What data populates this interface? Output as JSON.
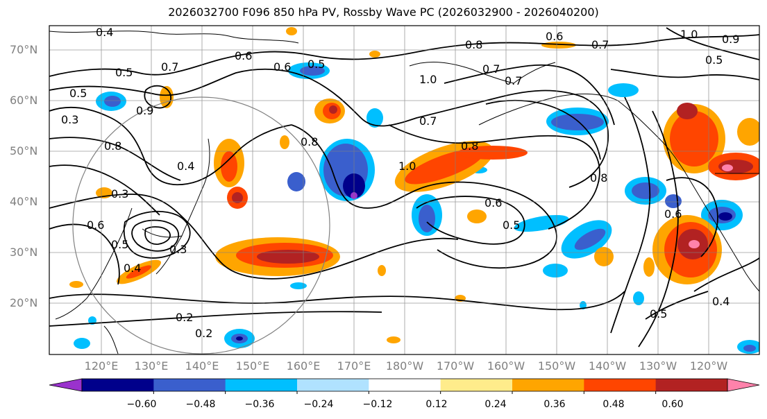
{
  "title": "2026032700 F096 850 hPa PV, Rossby Wave PC (2026032900 - 2026040200)",
  "lat_labels": [
    "70°N",
    "60°N",
    "50°N",
    "40°N",
    "30°N",
    "20°N"
  ],
  "lon_labels": [
    "120°E",
    "130°E",
    "140°E",
    "150°E",
    "160°E",
    "170°E",
    "180°W",
    "170°W",
    "160°W",
    "150°W",
    "140°W",
    "130°W",
    "120°W"
  ],
  "colorbar": {
    "colors": [
      "#9a32cd",
      "#00008b",
      "#3a5fcd",
      "#00bfff",
      "#b0e2ff",
      "#ffffff",
      "#ffec8b",
      "#ffa500",
      "#ff4500",
      "#b22222",
      "#ff82ab"
    ],
    "tick_labels": [
      "−0.60",
      "−0.48",
      "−0.36",
      "−0.24",
      "−0.12",
      "0.12",
      "0.24",
      "0.36",
      "0.48",
      "0.60"
    ],
    "levels": [
      -0.6,
      -0.48,
      -0.36,
      -0.24,
      -0.12,
      0.12,
      0.24,
      0.36,
      0.48,
      0.6
    ]
  },
  "contour_labels": [
    "0.4",
    "0.5",
    "0.7",
    "0.5",
    "0.3",
    "0.9",
    "0.8",
    "0.4",
    "0.3",
    "0.6",
    "0.5",
    "0.4",
    "0.2",
    "0.2",
    "0.6",
    "0.7",
    "0.8",
    "1.0",
    "1.0",
    "0.7",
    "0.8",
    "0.7",
    "0.5",
    "0.6",
    "0.5",
    "0.6",
    "0.7",
    "0.8",
    "1.0",
    "0.9",
    "0.5",
    "0.6",
    "0.3",
    "0.5",
    "0.4",
    "0.6",
    "0.8"
  ],
  "map": {
    "projection": "equidistant cylindrical",
    "extent_lon": "115°E - 115°W",
    "extent_lat": "10°N - 75°N",
    "field": "850 hPa PV contours with Rossby wave PC anomaly shading"
  }
}
